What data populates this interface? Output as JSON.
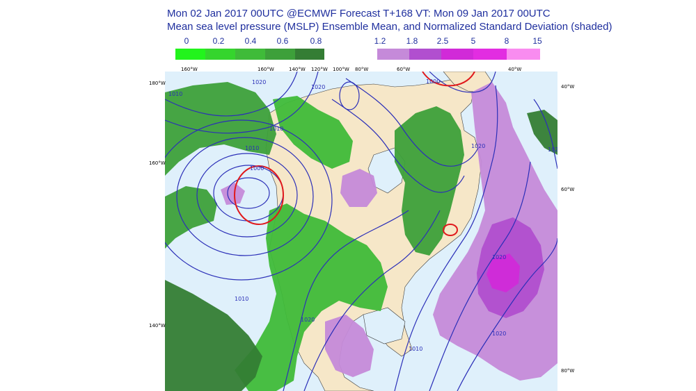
{
  "title": {
    "line1": "Mon 02 Jan 2017 00UTC @ECMWF Forecast T+168 VT: Mon 09 Jan 2017 00UTC",
    "line2": "Mean sea level pressure (MSLP) Ensemble Mean, and Normalized Standard Deviation (shaded)"
  },
  "legend_green": {
    "labels": [
      "0",
      "0.2",
      "0.4",
      "0.6",
      "0.8"
    ],
    "colors": [
      "#22f41c",
      "#35d52d",
      "#3fbb39",
      "#3da03a",
      "#347d34"
    ]
  },
  "legend_purple": {
    "labels": [
      "1.2",
      "1.8",
      "2.5",
      "5",
      "8",
      "15"
    ],
    "colors": [
      "#c58ad9",
      "#b14fcf",
      "#d12ad8",
      "#e22de1",
      "#f98cf0"
    ]
  },
  "map": {
    "ocean_color": "#dff0fb",
    "land_color": "#f6e7c8",
    "isobar_color": "#2b2fb8",
    "low_color": "#e0191c",
    "isobar_labels": [
      "1010",
      "1020",
      "1000",
      "1010",
      "1010",
      "1020",
      "1000",
      "1020",
      "1010",
      "1020",
      "1020",
      "1020",
      "1020",
      "1010"
    ],
    "top_lon_labels": [
      "160°W",
      "160°W",
      "140°W",
      "120°W",
      "100°W",
      "80°W",
      "60°W",
      "40°W"
    ],
    "left_lat_labels": [
      "180°W",
      "160°W",
      "140°W"
    ],
    "right_labels": [
      "40°W",
      "60°W",
      "80°W"
    ]
  }
}
